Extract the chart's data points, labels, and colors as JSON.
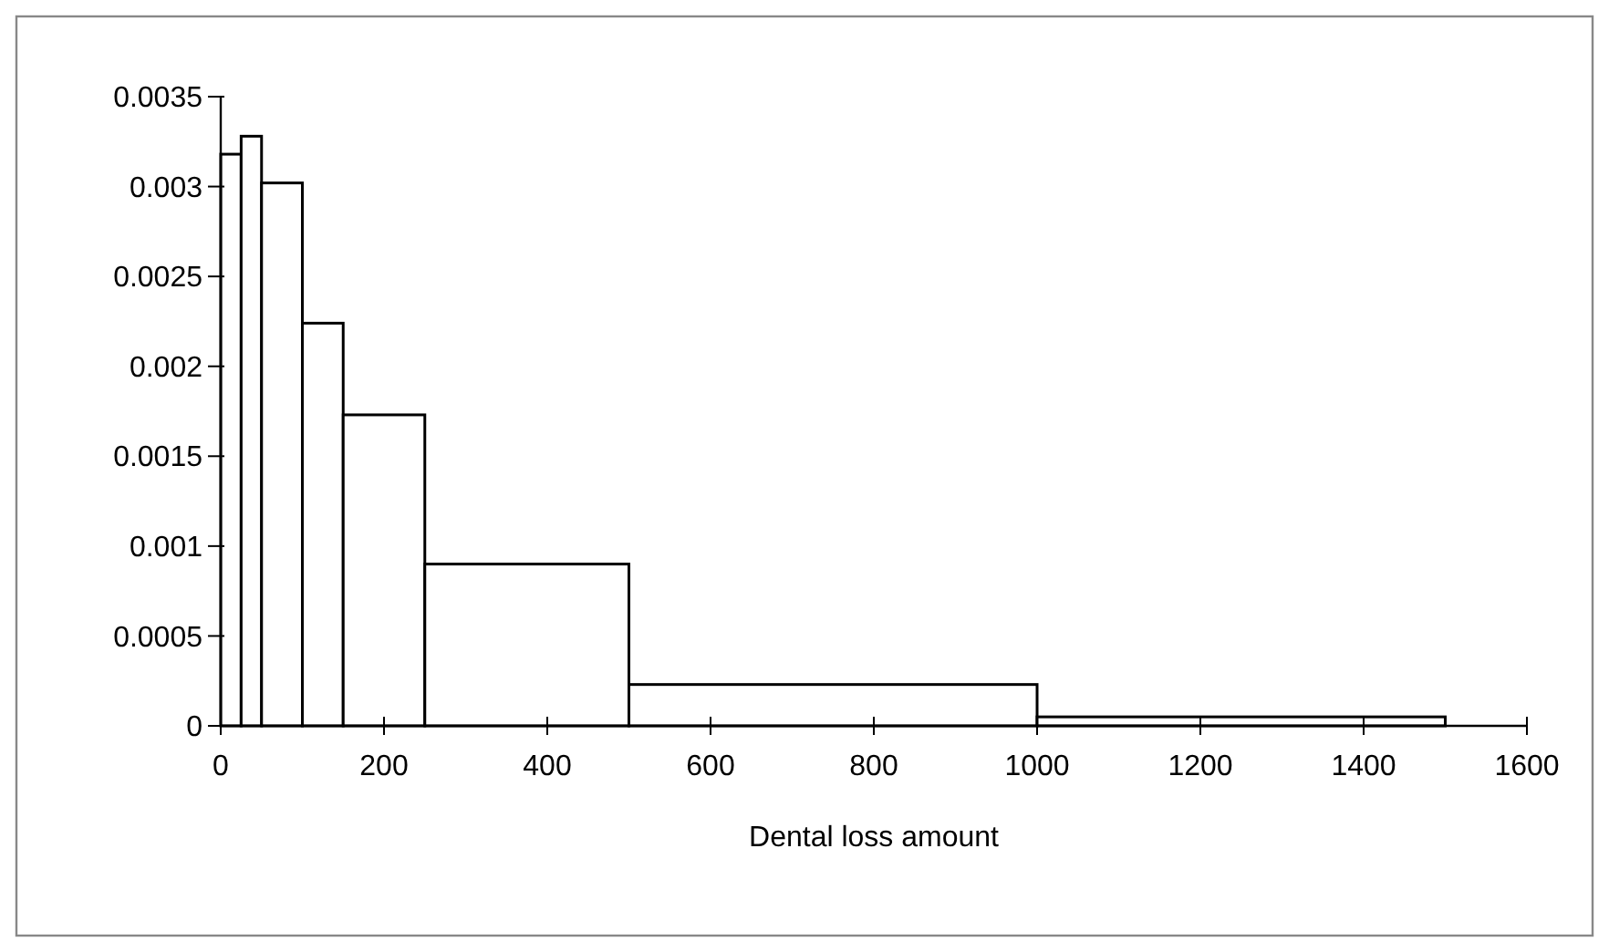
{
  "chart_data": {
    "type": "histogram",
    "xlabel": "Dental loss amount",
    "bins": [
      0,
      25,
      50,
      100,
      150,
      250,
      500,
      1000,
      1500
    ],
    "values": [
      0.00318,
      0.00328,
      0.00302,
      0.00224,
      0.00173,
      0.0009,
      0.00023,
      5e-05
    ],
    "color": "#ffffff",
    "xlim": [
      0,
      1600
    ],
    "xticks": [
      0,
      200,
      400,
      600,
      800,
      1000,
      1200,
      1400,
      1600
    ],
    "ylim": [
      0,
      0.0035
    ],
    "yticks": [
      0,
      0.0005,
      0.001,
      0.0015,
      0.002,
      0.0025,
      0.003,
      0.0035
    ],
    "grid": false
  }
}
